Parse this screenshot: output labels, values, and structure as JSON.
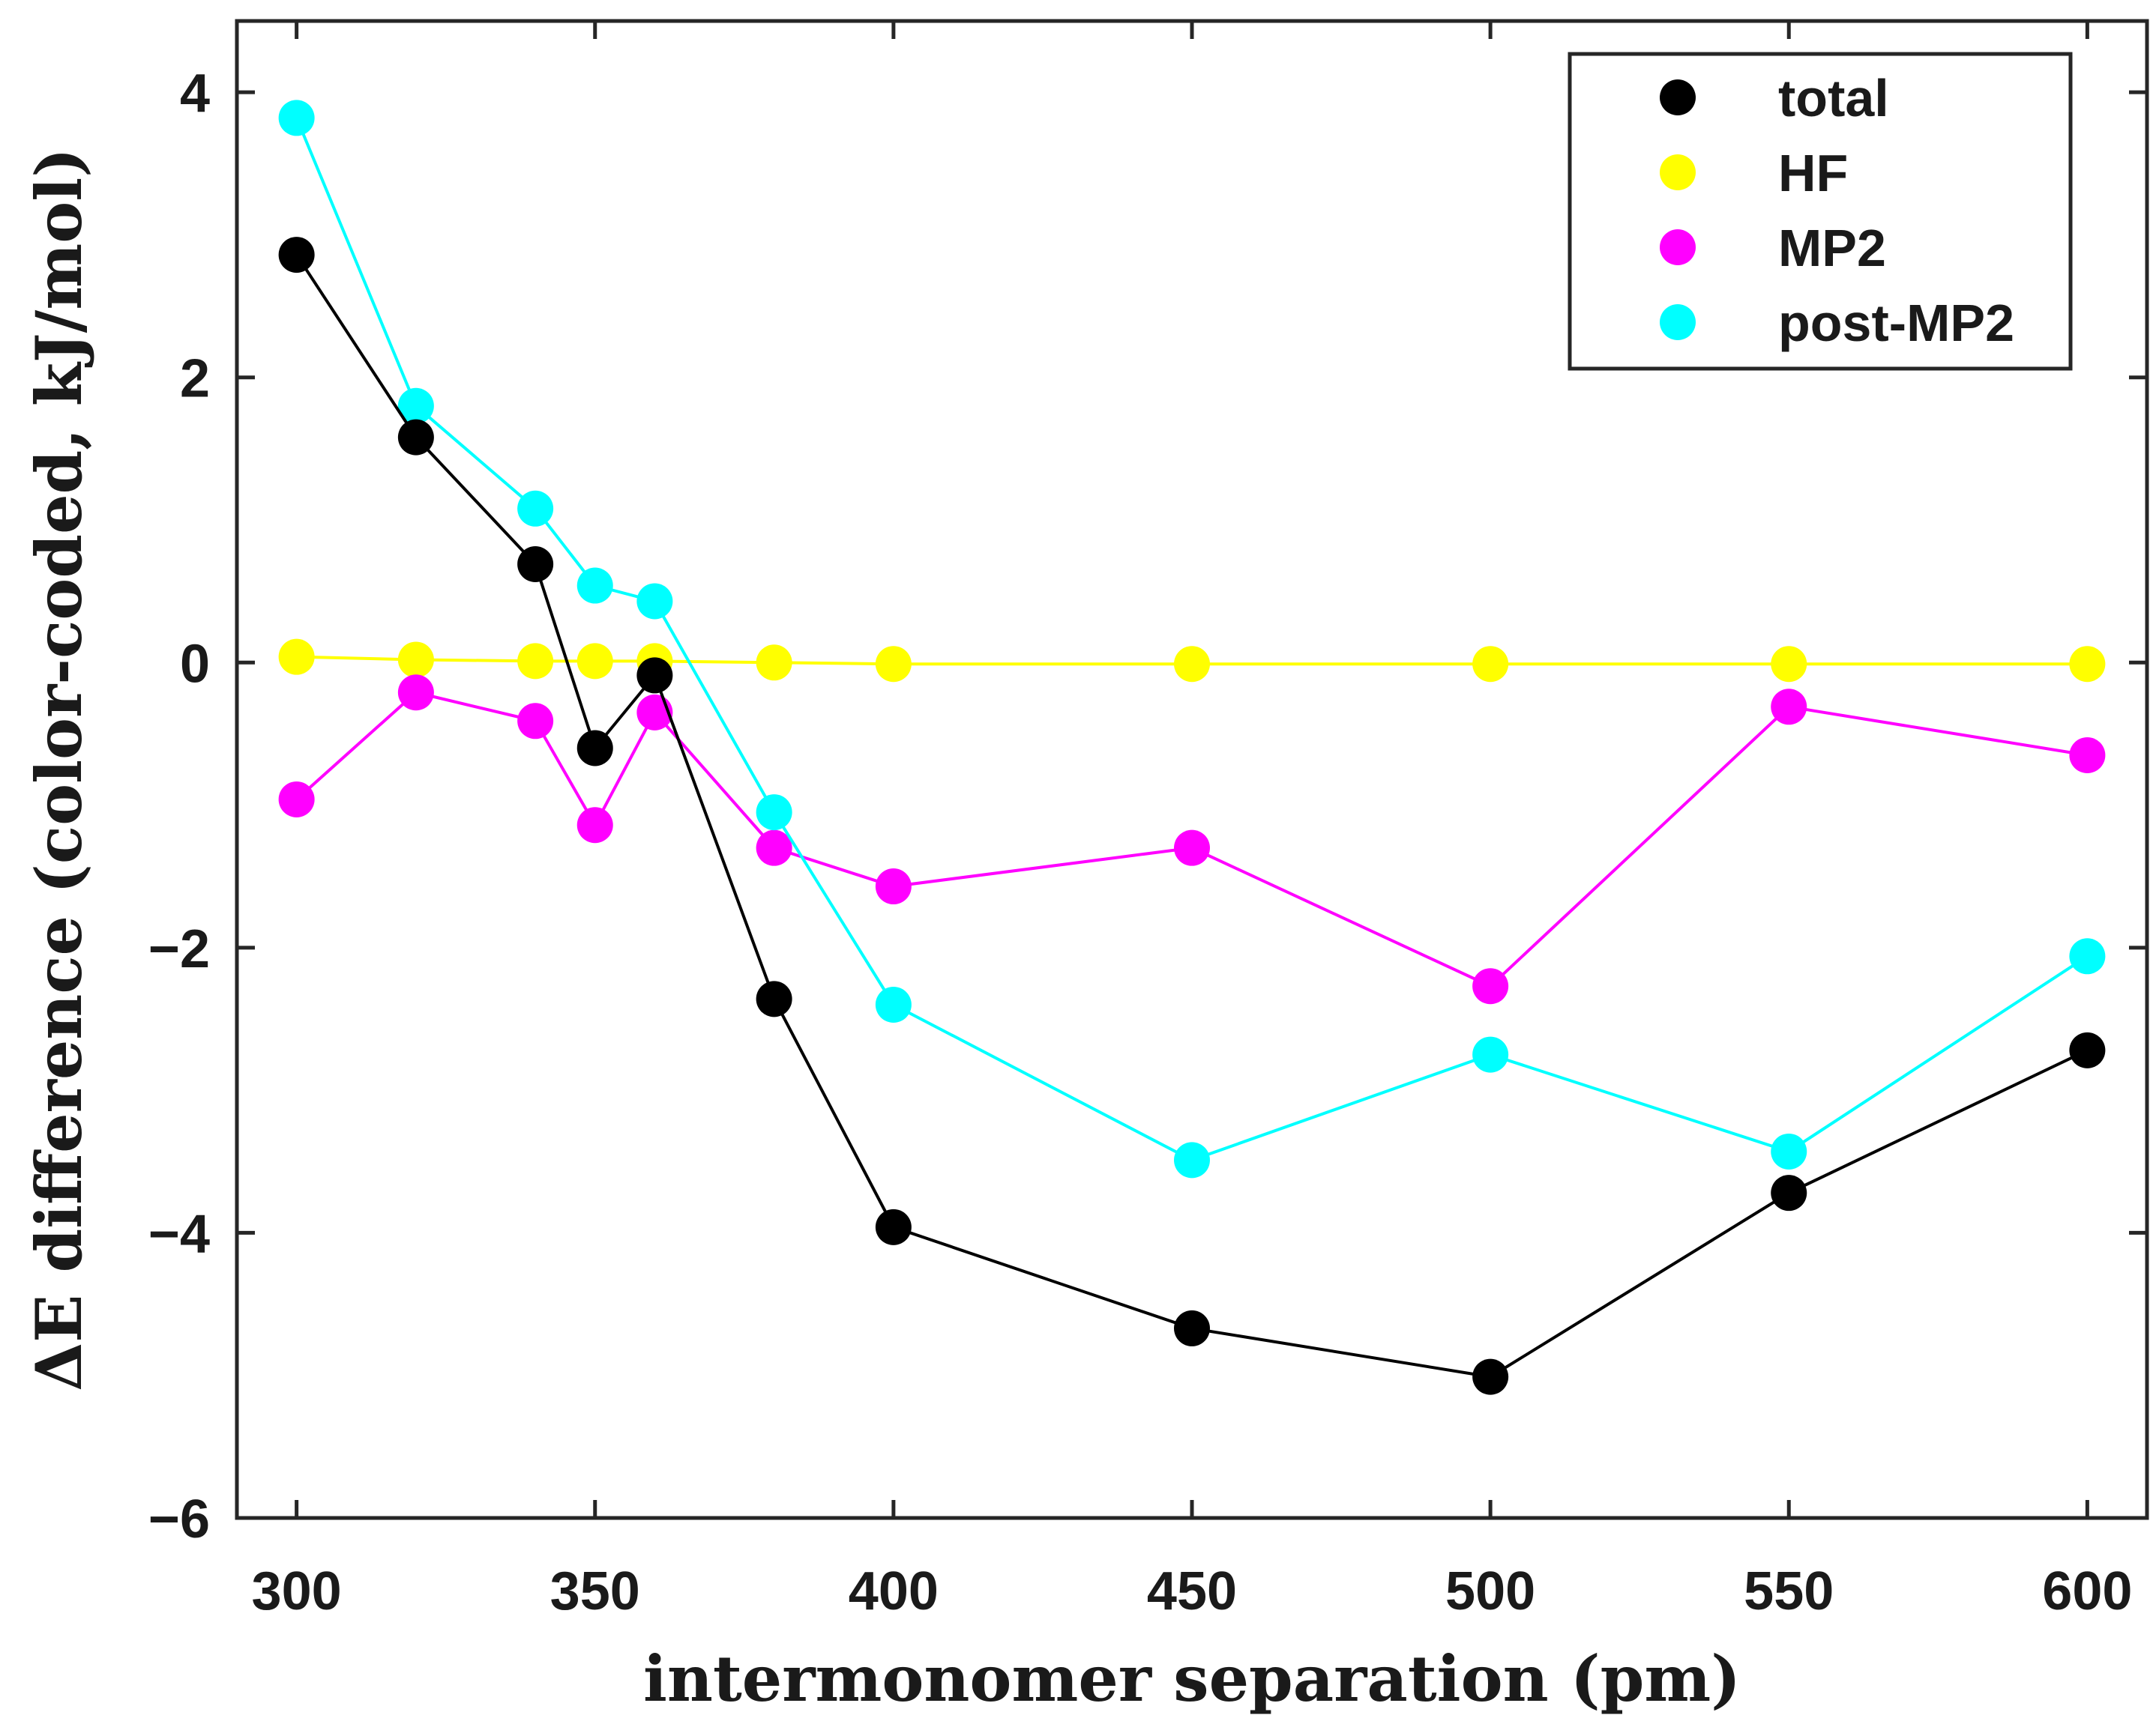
{
  "chart_data": {
    "type": "line",
    "title": "",
    "xlabel": "intermonomer separation (pm)",
    "ylabel": "ΔE difference (color-coded, kJ/mol)",
    "xlim": [
      290,
      610
    ],
    "ylim": [
      -6,
      4.5
    ],
    "xticks": [
      300,
      350,
      400,
      450,
      500,
      550,
      600
    ],
    "yticks": [
      -6,
      -4,
      -2,
      0,
      2,
      4
    ],
    "xtick_labels": [
      "300",
      "350",
      "400",
      "450",
      "500",
      "550",
      "600"
    ],
    "ytick_labels": [
      "−6",
      "−4",
      "−2",
      "0",
      "2",
      "4"
    ],
    "legend_position": "top-right",
    "x": [
      300,
      320,
      340,
      350,
      360,
      380,
      400,
      450,
      500,
      550,
      600
    ],
    "series": [
      {
        "name": "total",
        "color": "#000000",
        "values": [
          2.86,
          1.58,
          0.69,
          -0.6,
          -0.09,
          -2.36,
          -3.96,
          -4.67,
          -5.01,
          -3.72,
          -2.72
        ]
      },
      {
        "name": "HF",
        "color": "#ffff00",
        "values": [
          0.04,
          0.02,
          0.01,
          0.01,
          0.01,
          0.0,
          -0.01,
          -0.01,
          -0.01,
          -0.01,
          -0.01
        ]
      },
      {
        "name": "MP2",
        "color": "#ff00ff",
        "values": [
          -0.96,
          -0.21,
          -0.41,
          -1.14,
          -0.35,
          -1.3,
          -1.57,
          -1.3,
          -2.27,
          -0.31,
          -0.65
        ]
      },
      {
        "name": "post-MP2",
        "color": "#00ffff",
        "values": [
          3.82,
          1.8,
          1.08,
          0.54,
          0.43,
          -1.05,
          -2.4,
          -3.49,
          -2.75,
          -3.43,
          -2.06
        ]
      }
    ]
  }
}
